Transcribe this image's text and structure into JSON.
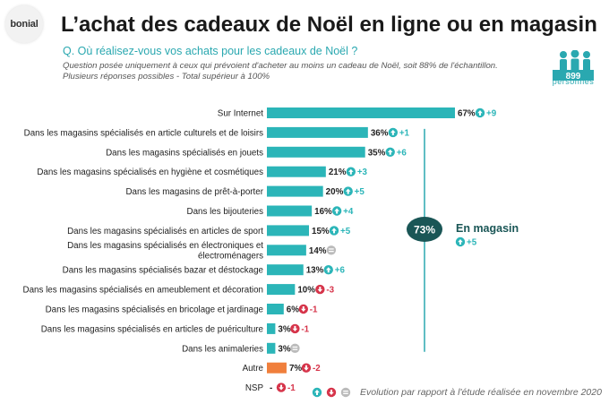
{
  "header": {
    "logo_text": "bonial",
    "title": "L’achat des cadeaux de Noël en ligne ou en magasin",
    "question": "Q. Où réalisez-vous vos achats pour les cadeaux de Noël ?",
    "note_line1": "Question posée uniquement à ceux qui prévoient d'acheter au moins un cadeau de Noël, soit 88% de l'échantillon.",
    "note_line2": "Plusieurs réponses possibles - Total supérieur à 100%",
    "sample_size": "899",
    "sample_label": "personnes"
  },
  "colors": {
    "bar": "#2bb5b8",
    "bar_other": "#f07f3c",
    "up": "#2bb5b8",
    "down": "#d6344a",
    "equal": "#bbbbbb",
    "bubble": "#1a5656",
    "teal_text": "#2aa8b0"
  },
  "chart_data": {
    "type": "bar",
    "orientation": "horizontal",
    "xlim": [
      0,
      67
    ],
    "categories": [
      "Sur Internet",
      "Dans les magasins spécialisés en article culturels et de loisirs",
      "Dans les magasins spécialisés en jouets",
      "Dans les magasins spécialisés en hygiène et cosmétiques",
      "Dans les magasins de prêt-à-porter",
      "Dans les bijouteries",
      "Dans les magasins spécialisés en articles de sport",
      [
        "Dans les magasins spécialisés en électroniques et",
        "électroménagers"
      ],
      "Dans les magasins spécialisés bazar et déstockage",
      "Dans les magasins spécialisés en ameublement et décoration",
      "Dans les magasins spécialisés en bricolage et jardinage",
      "Dans les magasins spécialisés en articles de puériculture",
      "Dans les animaleries",
      "Autre",
      "NSP"
    ],
    "values": [
      67,
      36,
      35,
      21,
      20,
      16,
      15,
      14,
      13,
      10,
      6,
      3,
      3,
      7,
      null
    ],
    "value_labels": [
      "67%",
      "36%",
      "35%",
      "21%",
      "20%",
      "16%",
      "15%",
      "14%",
      "13%",
      "10%",
      "6%",
      "3%",
      "3%",
      "7%",
      "-"
    ],
    "deltas": [
      {
        "dir": "up",
        "text": "+9"
      },
      {
        "dir": "up",
        "text": "+1"
      },
      {
        "dir": "up",
        "text": "+6"
      },
      {
        "dir": "up",
        "text": "+3"
      },
      {
        "dir": "up",
        "text": "+5"
      },
      {
        "dir": "up",
        "text": "+4"
      },
      {
        "dir": "up",
        "text": "+5"
      },
      {
        "dir": "equal",
        "text": ""
      },
      {
        "dir": "up",
        "text": "+6"
      },
      {
        "dir": "down",
        "text": "-3"
      },
      {
        "dir": "down",
        "text": "-1"
      },
      {
        "dir": "down",
        "text": "-1"
      },
      {
        "dir": "equal",
        "text": ""
      },
      {
        "dir": "down",
        "text": "-2"
      },
      {
        "dir": "down",
        "text": "-1"
      }
    ],
    "highlight_category": "Autre",
    "group_annotation": {
      "value": "73%",
      "label": "En magasin",
      "delta": {
        "dir": "up",
        "text": "+5"
      },
      "spans": [
        "Dans les magasins spécialisés en article culturels et de loisirs",
        "Dans les animaleries"
      ]
    },
    "footnote": "Evolution par rapport à l'étude réalisée en novembre 2020"
  }
}
